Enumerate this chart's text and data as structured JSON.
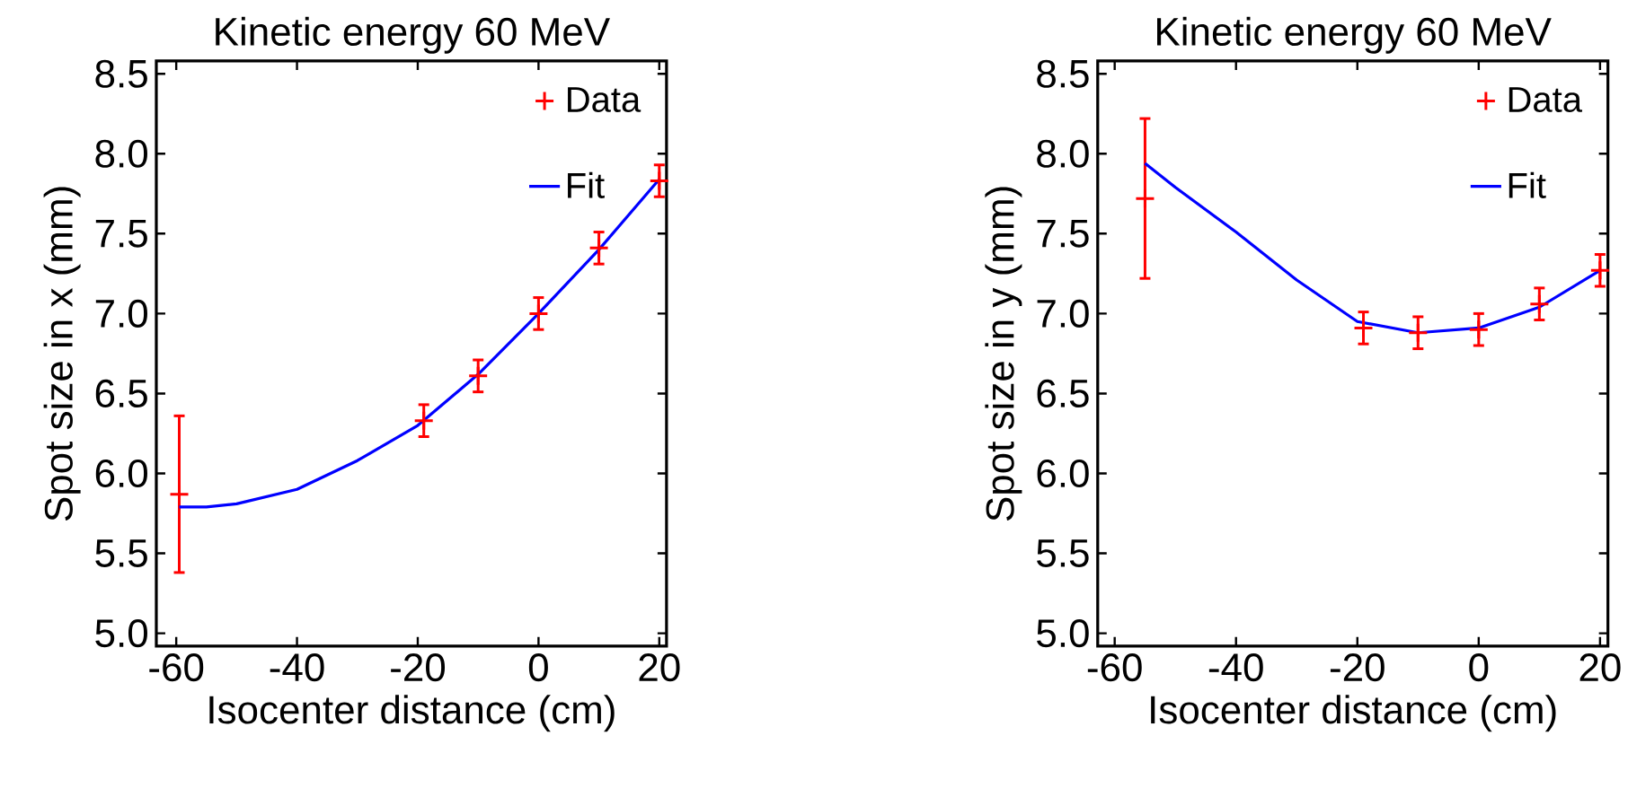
{
  "chart_data": [
    {
      "type": "scatter",
      "title": "Kinetic energy 60 MeV",
      "xlabel": "Isocenter distance (cm)",
      "ylabel": "Spot size in x (mm)",
      "xlim": [
        -63.3,
        21.2
      ],
      "ylim": [
        4.92,
        8.58
      ],
      "xticks": [
        -60,
        -40,
        -20,
        0,
        20
      ],
      "yticks": [
        {
          "value": 5,
          "label": "5.0"
        },
        {
          "value": 5.5,
          "label": "5.5"
        },
        {
          "value": 6,
          "label": "6.0"
        },
        {
          "value": 6.5,
          "label": "6.5"
        },
        {
          "value": 7,
          "label": "7.0"
        },
        {
          "value": 7.5,
          "label": "7.5"
        },
        {
          "value": 8,
          "label": "8.0"
        },
        {
          "value": 8.5,
          "label": "8.5"
        }
      ],
      "grid": false,
      "legend": "top right",
      "series": [
        {
          "name": "Data",
          "type": "scatter",
          "marker": "cross",
          "color": "#ff0000",
          "x": [
            -59.5,
            -19,
            -10,
            0,
            10,
            20
          ],
          "values": [
            5.87,
            6.33,
            6.61,
            7.0,
            7.41,
            7.83
          ],
          "errors": [
            0.49,
            0.1,
            0.1,
            0.1,
            0.1,
            0.1
          ]
        },
        {
          "name": "Fit",
          "type": "line",
          "marker": "none",
          "color": "#0000ff",
          "x": [
            -59.5,
            -55,
            -50,
            -40,
            -30,
            -20,
            -10,
            0,
            10,
            20
          ],
          "values": [
            5.79,
            5.79,
            5.81,
            5.9,
            6.08,
            6.3,
            6.62,
            7.0,
            7.4,
            7.84
          ]
        }
      ]
    },
    {
      "type": "scatter",
      "title": "Kinetic energy 60 MeV",
      "xlabel": "Isocenter distance (cm)",
      "ylabel": "Spot size in y (mm)",
      "xlim": [
        -62.8,
        21.3
      ],
      "ylim": [
        4.92,
        8.58
      ],
      "xticks": [
        -60,
        -40,
        -20,
        0,
        20
      ],
      "yticks": [
        {
          "value": 5,
          "label": "5.0"
        },
        {
          "value": 5.5,
          "label": "5.5"
        },
        {
          "value": 6,
          "label": "6.0"
        },
        {
          "value": 6.5,
          "label": "6.5"
        },
        {
          "value": 7,
          "label": "7.0"
        },
        {
          "value": 7.5,
          "label": "7.5"
        },
        {
          "value": 8,
          "label": "8.0"
        },
        {
          "value": 8.5,
          "label": "8.5"
        }
      ],
      "grid": false,
      "legend": "top right",
      "series": [
        {
          "name": "Data",
          "type": "scatter",
          "marker": "cross",
          "color": "#ff0000",
          "x": [
            -55,
            -19,
            -10,
            0,
            10,
            20
          ],
          "values": [
            7.72,
            6.91,
            6.88,
            6.9,
            7.06,
            7.27
          ],
          "errors": [
            0.5,
            0.1,
            0.1,
            0.1,
            0.1,
            0.1
          ]
        },
        {
          "name": "Fit",
          "type": "line",
          "marker": "none",
          "color": "#0000ff",
          "x": [
            -55,
            -50,
            -40,
            -30,
            -20,
            -10,
            0,
            10,
            20
          ],
          "values": [
            7.94,
            7.79,
            7.51,
            7.21,
            6.95,
            6.88,
            6.91,
            7.04,
            7.27
          ]
        }
      ]
    }
  ]
}
